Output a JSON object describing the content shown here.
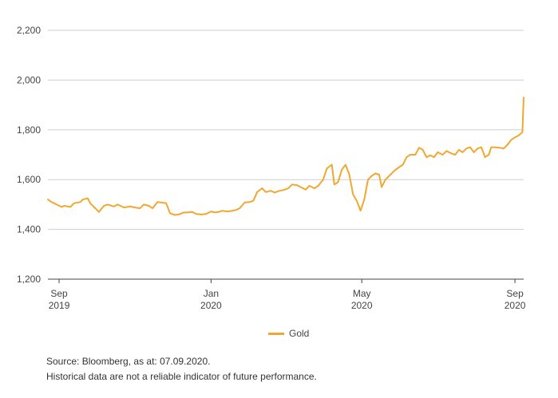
{
  "chart_data": {
    "type": "line",
    "ylim": [
      1200,
      2200
    ],
    "yticks": [
      1200,
      1400,
      1600,
      1800,
      2000,
      2200
    ],
    "ytick_labels": [
      "1,200",
      "1,400",
      "1,600",
      "1,800",
      "2,000",
      "2,200"
    ],
    "xlim": [
      "2019-08-23",
      "2020-09-08"
    ],
    "xticks": [
      {
        "date": "2019-09-01",
        "line1": "Sep",
        "line2": "2019"
      },
      {
        "date": "2020-01-01",
        "line1": "Jan",
        "line2": "2020"
      },
      {
        "date": "2020-05-01",
        "line1": "May",
        "line2": "2020"
      },
      {
        "date": "2020-09-01",
        "line1": "Sep",
        "line2": "2020"
      }
    ],
    "grid": "horizontal",
    "legend_position": "bottom-center",
    "series": [
      {
        "name": "Gold",
        "color": "#F0A830",
        "points": [
          [
            "2019-08-23",
            1520
          ],
          [
            "2019-08-26",
            1510
          ],
          [
            "2019-08-30",
            1500
          ],
          [
            "2019-09-03",
            1490
          ],
          [
            "2019-09-05",
            1495
          ],
          [
            "2019-09-10",
            1490
          ],
          [
            "2019-09-13",
            1505
          ],
          [
            "2019-09-18",
            1510
          ],
          [
            "2019-09-20",
            1520
          ],
          [
            "2019-09-24",
            1525
          ],
          [
            "2019-09-26",
            1505
          ],
          [
            "2019-10-01",
            1480
          ],
          [
            "2019-10-03",
            1470
          ],
          [
            "2019-10-07",
            1495
          ],
          [
            "2019-10-10",
            1500
          ],
          [
            "2019-10-15",
            1492
          ],
          [
            "2019-10-18",
            1500
          ],
          [
            "2019-10-23",
            1488
          ],
          [
            "2019-10-28",
            1492
          ],
          [
            "2019-11-01",
            1488
          ],
          [
            "2019-11-05",
            1485
          ],
          [
            "2019-11-08",
            1500
          ],
          [
            "2019-11-12",
            1495
          ],
          [
            "2019-11-15",
            1485
          ],
          [
            "2019-11-19",
            1510
          ],
          [
            "2019-11-22",
            1508
          ],
          [
            "2019-11-26",
            1505
          ],
          [
            "2019-11-29",
            1465
          ],
          [
            "2019-12-03",
            1458
          ],
          [
            "2019-12-06",
            1460
          ],
          [
            "2019-12-10",
            1468
          ],
          [
            "2019-12-13",
            1468
          ],
          [
            "2019-12-17",
            1470
          ],
          [
            "2019-12-20",
            1462
          ],
          [
            "2019-12-24",
            1460
          ],
          [
            "2019-12-28",
            1462
          ],
          [
            "2020-01-01",
            1472
          ],
          [
            "2020-01-04",
            1468
          ],
          [
            "2020-01-07",
            1470
          ],
          [
            "2020-01-10",
            1475
          ],
          [
            "2020-01-14",
            1472
          ],
          [
            "2020-01-17",
            1474
          ],
          [
            "2020-01-21",
            1478
          ],
          [
            "2020-01-24",
            1485
          ],
          [
            "2020-01-28",
            1508
          ],
          [
            "2020-02-01",
            1510
          ],
          [
            "2020-02-04",
            1515
          ],
          [
            "2020-02-07",
            1550
          ],
          [
            "2020-02-11",
            1565
          ],
          [
            "2020-02-14",
            1550
          ],
          [
            "2020-02-18",
            1555
          ],
          [
            "2020-02-21",
            1548
          ],
          [
            "2020-02-25",
            1555
          ],
          [
            "2020-02-28",
            1558
          ],
          [
            "2020-03-03",
            1565
          ],
          [
            "2020-03-06",
            1580
          ],
          [
            "2020-03-10",
            1578
          ],
          [
            "2020-03-13",
            1570
          ],
          [
            "2020-03-17",
            1560
          ],
          [
            "2020-03-20",
            1575
          ],
          [
            "2020-03-24",
            1565
          ],
          [
            "2020-03-27",
            1575
          ],
          [
            "2020-03-31",
            1600
          ],
          [
            "2020-04-03",
            1645
          ],
          [
            "2020-04-07",
            1660
          ],
          [
            "2020-04-09",
            1580
          ],
          [
            "2020-04-12",
            1590
          ],
          [
            "2020-04-15",
            1640
          ],
          [
            "2020-04-18",
            1660
          ],
          [
            "2020-04-21",
            1620
          ],
          [
            "2020-04-24",
            1540
          ],
          [
            "2020-04-27",
            1515
          ],
          [
            "2020-04-30",
            1475
          ],
          [
            "2020-05-03",
            1520
          ],
          [
            "2020-05-06",
            1600
          ],
          [
            "2020-05-09",
            1615
          ],
          [
            "2020-05-12",
            1625
          ],
          [
            "2020-05-15",
            1620
          ],
          [
            "2020-05-17",
            1570
          ],
          [
            "2020-05-20",
            1600
          ],
          [
            "2020-05-24",
            1620
          ],
          [
            "2020-05-27",
            1635
          ],
          [
            "2020-05-31",
            1650
          ],
          [
            "2020-06-03",
            1660
          ],
          [
            "2020-06-06",
            1690
          ],
          [
            "2020-06-09",
            1700
          ],
          [
            "2020-06-13",
            1700
          ],
          [
            "2020-06-16",
            1728
          ],
          [
            "2020-06-19",
            1720
          ],
          [
            "2020-06-22",
            1690
          ],
          [
            "2020-06-25",
            1698
          ],
          [
            "2020-06-28",
            1690
          ],
          [
            "2020-07-01",
            1710
          ],
          [
            "2020-07-05",
            1700
          ],
          [
            "2020-07-08",
            1715
          ],
          [
            "2020-07-12",
            1705
          ],
          [
            "2020-07-15",
            1700
          ],
          [
            "2020-07-18",
            1720
          ],
          [
            "2020-07-21",
            1710
          ],
          [
            "2020-07-24",
            1725
          ],
          [
            "2020-07-27",
            1730
          ],
          [
            "2020-07-30",
            1710
          ],
          [
            "2020-08-02",
            1725
          ],
          [
            "2020-08-05",
            1730
          ],
          [
            "2020-08-08",
            1690
          ],
          [
            "2020-08-11",
            1700
          ],
          [
            "2020-08-13",
            1730
          ],
          [
            "2020-08-16",
            1730
          ],
          [
            "2020-08-20",
            1728
          ],
          [
            "2020-08-23",
            1725
          ],
          [
            "2020-08-26",
            1740
          ],
          [
            "2020-08-29",
            1760
          ],
          [
            "2020-09-01",
            1770
          ],
          [
            "2020-09-04",
            1778
          ],
          [
            "2020-09-07",
            1790
          ],
          [
            "2020-09-08",
            1930
          ]
        ]
      }
    ]
  },
  "legend": {
    "label": "Gold"
  },
  "footnotes": {
    "source": "Source: Bloomberg, as at: 07.09.2020.",
    "disclaimer": "Historical data are not a reliable indicator of future performance."
  }
}
